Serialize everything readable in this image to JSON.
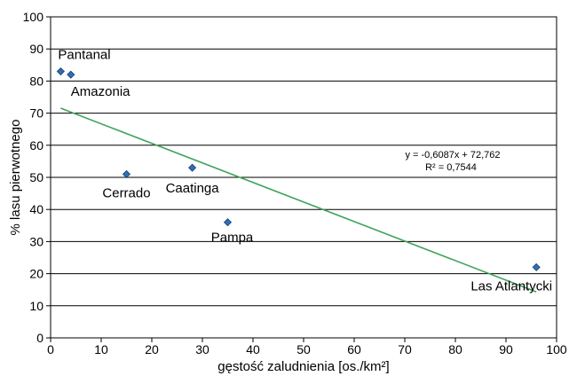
{
  "chart_data": {
    "type": "scatter",
    "xlabel": "gęstość zaludnienia [os./km²]",
    "ylabel": "% lasu pierwotnego",
    "xlim": [
      0,
      100
    ],
    "ylim": [
      0,
      100
    ],
    "x_ticks": [
      0,
      10,
      20,
      30,
      40,
      50,
      60,
      70,
      80,
      90,
      100
    ],
    "y_ticks": [
      0,
      10,
      20,
      30,
      40,
      50,
      60,
      70,
      80,
      90,
      100
    ],
    "grid": "horizontal",
    "legend": "none",
    "points": [
      {
        "label": "Pantanal",
        "x": 2,
        "y": 83
      },
      {
        "label": "Amazonia",
        "x": 4,
        "y": 82
      },
      {
        "label": "Cerrado",
        "x": 15,
        "y": 51
      },
      {
        "label": "Caatinga",
        "x": 28,
        "y": 53
      },
      {
        "label": "Pampa",
        "x": 35,
        "y": 36
      },
      {
        "label": "Las Atlantycki",
        "x": 96,
        "y": 22
      }
    ],
    "trendline": {
      "slope": -0.6087,
      "intercept": 72.762,
      "x_range": [
        2,
        96
      ],
      "equation": "y = -0,6087x + 72,762",
      "r_squared": "R² = 0,7544"
    },
    "colors": {
      "marker": "#2f6fb5",
      "marker_edge": "#1a3f73",
      "trendline": "#3fa35b"
    }
  }
}
